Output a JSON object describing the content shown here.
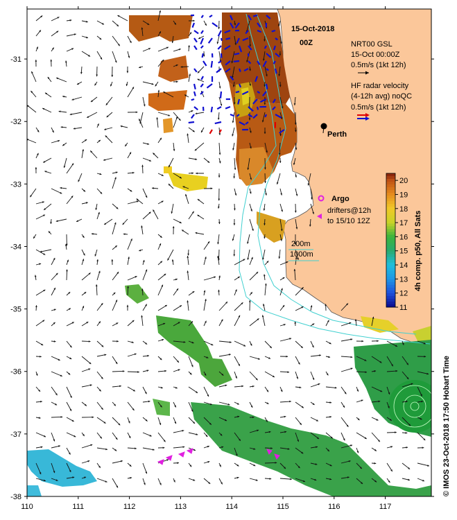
{
  "figure": {
    "date_title": "15-Oct-2018",
    "time_title": "00Z",
    "credit": "© IMOS 23-Oct-2018 17:50 Hobart Time"
  },
  "axes": {
    "lon_ticks": [
      "110",
      "111",
      "112",
      "113",
      "114",
      "115",
      "116",
      "117"
    ],
    "lat_ticks": [
      "-31",
      "-32",
      "-33",
      "-34",
      "-35",
      "-36",
      "-37",
      "-38"
    ],
    "lon_range": [
      110,
      117.9
    ],
    "lat_range": [
      -38,
      -30.2
    ]
  },
  "legend": {
    "gsl_line1": "NRT00 GSL",
    "gsl_line2": "15-Oct 00:00Z",
    "gsl_line3": "0.5m/s (1kt 12h)",
    "hf_line1": "HF radar velocity",
    "hf_line2": "(4-12h avg) noQC",
    "hf_line3": "0.5m/s (1kt 12h)",
    "argo_label": "Argo",
    "drifters_line1": "drifters@12h",
    "drifters_line2": "to 15/10 12Z",
    "contour_200": "200m",
    "contour_1000": "1000m"
  },
  "places": {
    "perth": "Perth"
  },
  "colorbar": {
    "title": "4h comp. p50, All Sats",
    "ticks": [
      "20",
      "19",
      "18",
      "17",
      "16",
      "15",
      "14",
      "13",
      "12",
      "11"
    ],
    "range": [
      11,
      20.5
    ]
  },
  "colors": {
    "land": "#fbc79a",
    "sst_hot": "#a84a0c",
    "sst_warm": "#d06a18",
    "sst_yellow": "#e8d020",
    "sst_green": "#2aa040",
    "sst_cyan": "#20b8d8",
    "contour": "#40d0d0",
    "hf_blue": "#1010d0",
    "hf_red": "#e00000",
    "argo": "#e020e0"
  }
}
